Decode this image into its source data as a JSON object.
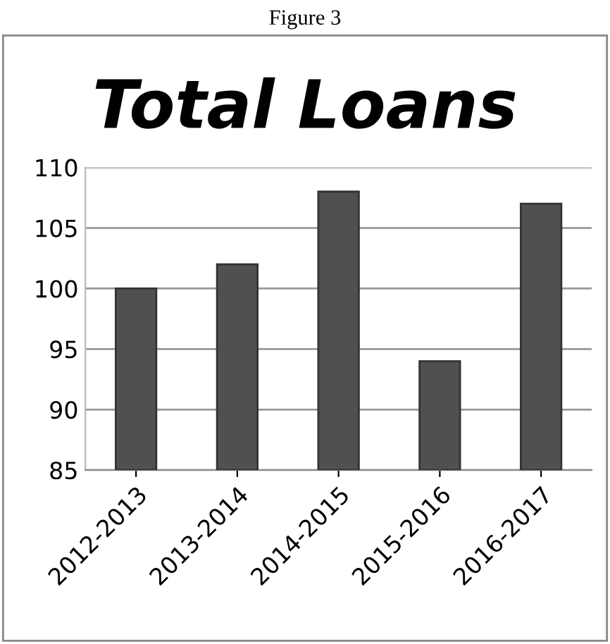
{
  "chart_data": {
    "type": "bar",
    "title": "Total Loans",
    "annotations": [
      "Figure 3"
    ],
    "categories": [
      "2012-2013",
      "2013-2014",
      "2014-2015",
      "2015-2016",
      "2016-2017"
    ],
    "values": [
      100,
      102,
      108,
      94,
      107
    ],
    "color": "#505050",
    "ylim": [
      85,
      110
    ],
    "yticks": [
      85,
      90,
      95,
      100,
      105,
      110
    ],
    "grid": "y",
    "legend": false
  }
}
